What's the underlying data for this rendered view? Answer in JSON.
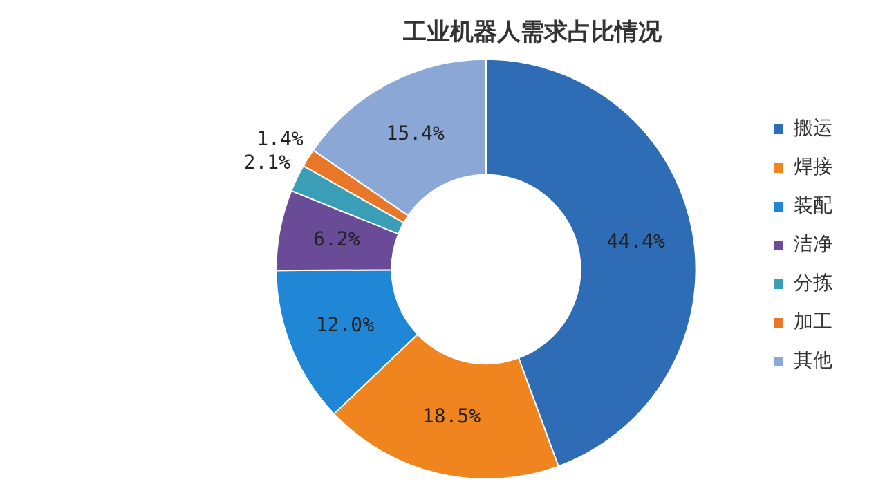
{
  "chart_data": {
    "type": "donut",
    "title": "工业机器人需求占比情况",
    "categories": [
      "搬运",
      "焊接",
      "装配",
      "洁净",
      "分拣",
      "加工",
      "其他"
    ],
    "values": [
      44.4,
      18.5,
      12.0,
      6.2,
      2.1,
      1.4,
      15.4
    ],
    "value_labels": [
      "44.4%",
      "18.5%",
      "12.0%",
      "6.2%",
      "2.1%",
      "1.4%",
      "15.4%"
    ],
    "colors": [
      "#2e6db5",
      "#f0841f",
      "#1f87d6",
      "#6a4b97",
      "#3a9fb6",
      "#e8772a",
      "#8aa7d6"
    ],
    "legend": "right"
  }
}
